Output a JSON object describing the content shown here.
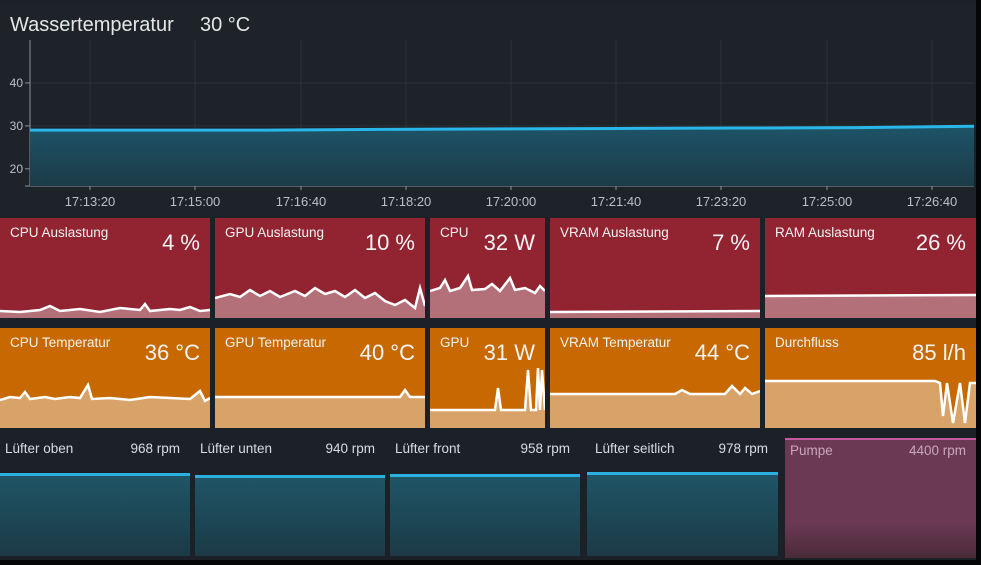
{
  "water": {
    "title": "Wassertemperatur",
    "value": "30 °C",
    "chart_data": {
      "type": "area",
      "x": [
        "17:13:20",
        "17:15:00",
        "17:16:40",
        "17:18:20",
        "17:20:00",
        "17:21:40",
        "17:23:20",
        "17:25:00",
        "17:26:40"
      ],
      "y_ticks": [
        "40",
        "30",
        "20"
      ],
      "ylim": [
        16,
        50
      ],
      "values": [
        29,
        29,
        29,
        29.2,
        29.3,
        29.4,
        29.5,
        29.6,
        29.9
      ],
      "line_color": "#29b6e8"
    }
  },
  "tiles_row1": [
    {
      "label": "CPU Auslastung",
      "value": "4 %"
    },
    {
      "label": "GPU Auslastung",
      "value": "10 %"
    },
    {
      "label": "CPU",
      "value": "32 W"
    },
    {
      "label": "VRAM Auslastung",
      "value": "7 %"
    },
    {
      "label": "RAM Auslastung",
      "value": "26 %"
    }
  ],
  "tiles_row2": [
    {
      "label": "CPU Temperatur",
      "value": "36 °C"
    },
    {
      "label": "GPU Temperatur",
      "value": "40 °C"
    },
    {
      "label": "GPU",
      "value": "31 W"
    },
    {
      "label": "VRAM Temperatur",
      "value": "44 °C"
    },
    {
      "label": "Durchfluss",
      "value": "85 l/h"
    }
  ],
  "fans": [
    {
      "label": "Lüfter oben",
      "value": "968 rpm"
    },
    {
      "label": "Lüfter unten",
      "value": "940 rpm"
    },
    {
      "label": "Lüfter front",
      "value": "958 rpm"
    },
    {
      "label": "Lüfter seitlich",
      "value": "978 rpm"
    }
  ],
  "pump": {
    "label": "Pumpe",
    "value": "4400 rpm"
  },
  "colors": {
    "red_tile": "#922432",
    "orange_tile": "#c76900",
    "accent": "#29b6e8",
    "pump": "#6b3a52"
  }
}
